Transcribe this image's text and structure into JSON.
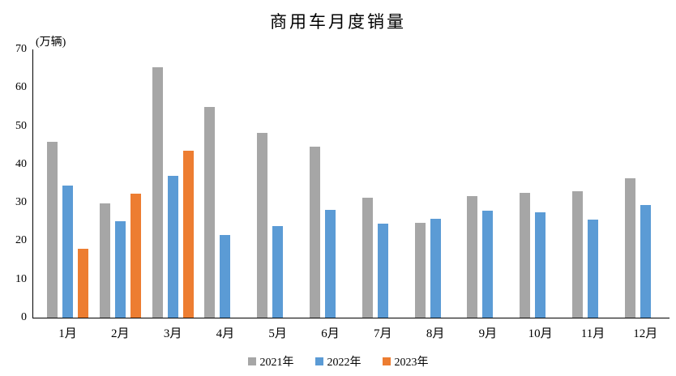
{
  "chart_data": {
    "type": "bar",
    "title": "商用车月度销量",
    "ylabel": "(万辆)",
    "categories": [
      "1月",
      "2月",
      "3月",
      "4月",
      "5月",
      "6月",
      "7月",
      "8月",
      "9月",
      "10月",
      "11月",
      "12月"
    ],
    "series": [
      {
        "name": "2021年",
        "color": "#A6A6A6",
        "values": [
          45.9,
          29.8,
          65.3,
          55.0,
          48.2,
          44.6,
          31.4,
          24.8,
          31.8,
          32.5,
          33.0,
          36.4
        ]
      },
      {
        "name": "2022年",
        "color": "#5B9BD5",
        "values": [
          34.5,
          25.1,
          37.1,
          21.6,
          23.9,
          28.2,
          24.5,
          25.8,
          28.0,
          27.4,
          25.5,
          29.3
        ]
      },
      {
        "name": "2023年",
        "color": "#ED7D31",
        "values": [
          18.0,
          32.4,
          43.6,
          null,
          null,
          null,
          null,
          null,
          null,
          null,
          null,
          null
        ]
      }
    ],
    "ylim": [
      0,
      70
    ],
    "ytick_step": 10,
    "grid": false,
    "legend_position": "bottom",
    "axis_color": "#000000",
    "text_color": "#000000",
    "background": "#FFFFFF"
  }
}
